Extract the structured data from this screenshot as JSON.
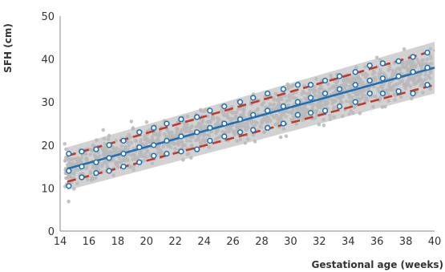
{
  "chart_data": {
    "type": "scatter",
    "xlabel": "Gestational age (weeks)",
    "ylabel": "SFH (cm)",
    "xlim": [
      14,
      40
    ],
    "ylim": [
      0,
      50
    ],
    "x_ticks": [
      14,
      16,
      18,
      20,
      22,
      24,
      26,
      28,
      30,
      32,
      34,
      36,
      38,
      40
    ],
    "y_ticks": [
      0,
      10,
      20,
      30,
      40,
      50
    ],
    "grid": false,
    "legend": "none",
    "colors": {
      "scatter": "#b8b8b8",
      "band": "#d2d2d2",
      "median": "#1f6fb4",
      "centile": "#c0392b",
      "marker": "#1f6fb4"
    },
    "series": [
      {
        "role": "median-line",
        "style": "solid",
        "x": [
          14.5,
          40
        ],
        "y": [
          14.5,
          38
        ]
      },
      {
        "role": "upper-centile",
        "style": "dashed",
        "x": [
          14.5,
          40
        ],
        "y": [
          17.5,
          42
        ]
      },
      {
        "role": "lower-centile",
        "style": "dashed",
        "x": [
          14.5,
          40
        ],
        "y": [
          11.5,
          34
        ]
      },
      {
        "role": "median-markers",
        "style": "open-circles",
        "x": [
          14.6,
          15.5,
          16.5,
          17.4,
          18.4,
          19.5,
          20.5,
          21.4,
          22.4,
          23.5,
          24.4,
          25.4,
          26.5,
          27.4,
          28.4,
          29.5,
          30.5,
          31.4,
          32.4,
          33.4,
          34.5,
          35.5,
          36.4,
          37.5,
          38.5,
          39.5
        ],
        "y": [
          14,
          15,
          16,
          17,
          18,
          19.5,
          20,
          21,
          22,
          23,
          24,
          25,
          26,
          27,
          28,
          29,
          30,
          31,
          32,
          33,
          34,
          35,
          35.5,
          36,
          37,
          38
        ]
      },
      {
        "role": "upper-markers",
        "style": "open-circles",
        "x": [
          14.6,
          15.5,
          16.5,
          17.4,
          18.4,
          19.5,
          20.5,
          21.4,
          22.4,
          23.5,
          24.4,
          25.4,
          26.5,
          27.4,
          28.4,
          29.5,
          30.5,
          31.4,
          32.4,
          33.4,
          34.5,
          35.5,
          36.4,
          37.5,
          38.5,
          39.5
        ],
        "y": [
          18,
          18.5,
          19,
          20,
          21,
          23,
          24,
          25,
          26,
          26.5,
          28,
          29,
          30,
          31,
          32,
          33,
          34,
          34,
          35,
          36,
          37,
          38.5,
          39,
          39.5,
          40.5,
          41.5
        ]
      },
      {
        "role": "lower-markers",
        "style": "open-circles",
        "x": [
          14.6,
          15.5,
          16.5,
          17.4,
          18.4,
          19.5,
          20.5,
          21.4,
          22.4,
          23.5,
          24.4,
          25.4,
          26.5,
          27.4,
          28.4,
          29.5,
          30.5,
          31.4,
          32.4,
          33.4,
          34.5,
          35.5,
          36.4,
          37.5,
          38.5,
          39.5
        ],
        "y": [
          10.5,
          12.5,
          13.5,
          14,
          15,
          16,
          17.5,
          18,
          18.5,
          19,
          21,
          22,
          23,
          23.5,
          24,
          25,
          27,
          27.5,
          28,
          29,
          30,
          32,
          32,
          32.5,
          32,
          34
        ]
      }
    ],
    "scatter_cloud": {
      "description_of_density": "dense grey individual measurements around median",
      "x_range": [
        14.3,
        39.8
      ],
      "intercept_at_14": 14.0,
      "slope_cm_per_week": 0.92,
      "spread_sd_cm": 2.2,
      "count": 1400
    }
  }
}
